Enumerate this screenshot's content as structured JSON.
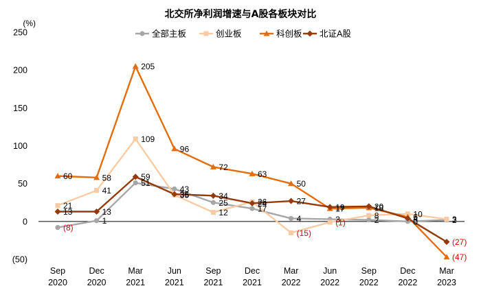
{
  "chart_data": {
    "type": "line",
    "title": "北交所净利润增速与A股各板块对比",
    "unit_label": "(%)",
    "categories": [
      "Sep\n2020",
      "Dec\n2020",
      "Mar\n2021",
      "Jun\n2021",
      "Sep\n2021",
      "Dec\n2021",
      "Mar\n2022",
      "Jun\n2022",
      "Sep\n2022",
      "Dec\n2022",
      "Mar\n2023"
    ],
    "ylim": [
      -50,
      250
    ],
    "yticks": [
      -50,
      0,
      50,
      100,
      150,
      200,
      250
    ],
    "ytick_labels": [
      "(50)",
      "0",
      "50",
      "100",
      "150",
      "200",
      "250"
    ],
    "grid": false,
    "legend_position": "top",
    "series": [
      {
        "name": "全部主板",
        "color": "#a6a6a6",
        "marker": "circle",
        "values": [
          -8,
          1,
          51,
          43,
          25,
          17,
          4,
          3,
          2,
          0,
          2
        ],
        "labels": [
          "(8)",
          "1",
          "51",
          "43",
          "25",
          "17",
          "4",
          "3",
          "2",
          "0",
          "2"
        ]
      },
      {
        "name": "创业板",
        "color": "#f8cba4",
        "marker": "square",
        "values": [
          21,
          41,
          109,
          35,
          12,
          26,
          -15,
          -1,
          8,
          10,
          3
        ],
        "labels": [
          "21",
          "41",
          "109",
          "35",
          "12",
          "26",
          "(15)",
          "(1)",
          "8",
          "10",
          "3"
        ]
      },
      {
        "name": "科创板",
        "color": "#e46c0a",
        "marker": "triangle",
        "values": [
          60,
          58,
          205,
          96,
          72,
          63,
          50,
          17,
          18,
          6,
          -47
        ],
        "labels": [
          "60",
          "58",
          "205",
          "96",
          "72",
          "63",
          "50",
          "17",
          "18",
          "6",
          "(47)"
        ]
      },
      {
        "name": "北证A股",
        "color": "#953a0a",
        "marker": "diamond",
        "values": [
          13,
          13,
          59,
          36,
          34,
          24,
          27,
          19,
          20,
          4,
          -27
        ],
        "labels": [
          "13",
          "13",
          "59",
          "36",
          "34",
          "24",
          "27",
          "19",
          "20",
          "4",
          "(27)"
        ]
      }
    ]
  }
}
